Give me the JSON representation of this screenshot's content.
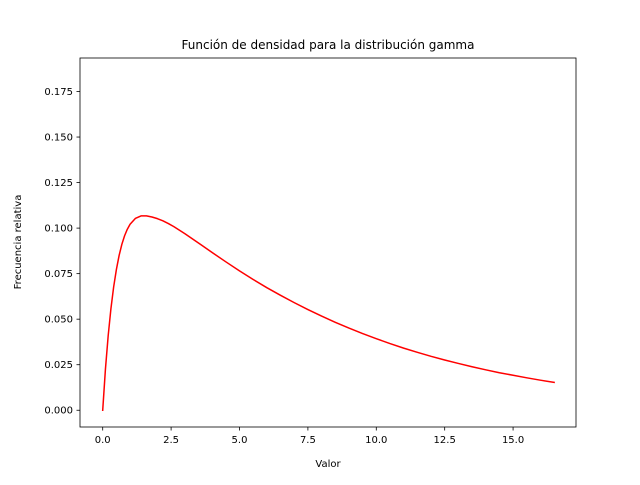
{
  "chart_data": {
    "type": "line",
    "title": "Función de densidad para la distribución gamma",
    "xlabel": "Valor",
    "ylabel": "Frecuencia relativa",
    "xlim": [
      -0.83,
      17.3
    ],
    "ylim": [
      -0.0092,
      0.1934
    ],
    "xticks": [
      0.0,
      2.5,
      5.0,
      7.5,
      10.0,
      12.5,
      15.0
    ],
    "xtick_labels": [
      "0.0",
      "2.5",
      "5.0",
      "7.5",
      "10.0",
      "12.5",
      "15.0"
    ],
    "yticks": [
      0.0,
      0.025,
      0.05,
      0.075,
      0.1,
      0.125,
      0.15,
      0.175
    ],
    "ytick_labels": [
      "0.000",
      "0.025",
      "0.050",
      "0.075",
      "0.100",
      "0.125",
      "0.150",
      "0.175"
    ],
    "grid": false,
    "series": [
      {
        "color": "#ff0000",
        "x": [
          0.0,
          0.1,
          0.2,
          0.3,
          0.4,
          0.5,
          0.6,
          0.7,
          0.8,
          0.9,
          1.0,
          1.2,
          1.4,
          1.6,
          1.8,
          2.0,
          2.2,
          2.4,
          2.6,
          2.8,
          3.0,
          3.3,
          3.6,
          4.0,
          4.5,
          5.0,
          5.5,
          6.0,
          6.5,
          7.0,
          7.5,
          8.0,
          8.5,
          9.0,
          9.5,
          10.0,
          10.5,
          11.0,
          11.5,
          12.0,
          12.5,
          13.0,
          13.5,
          14.0,
          14.5,
          15.0,
          15.5,
          16.0,
          16.5
        ],
        "y": [
          0.0,
          0.0226,
          0.0409,
          0.0557,
          0.0677,
          0.0773,
          0.085,
          0.0911,
          0.0958,
          0.0994,
          0.1021,
          0.1054,
          0.1067,
          0.1067,
          0.1061,
          0.1052,
          0.104,
          0.1025,
          0.1008,
          0.0989,
          0.097,
          0.0939,
          0.0908,
          0.0866,
          0.0815,
          0.0765,
          0.0718,
          0.0673,
          0.0631,
          0.0591,
          0.0553,
          0.0517,
          0.0483,
          0.0451,
          0.0421,
          0.0393,
          0.0366,
          0.0341,
          0.0318,
          0.0296,
          0.0276,
          0.0257,
          0.0239,
          0.0222,
          0.0206,
          0.0192,
          0.0178,
          0.0165,
          0.0153
        ]
      }
    ]
  }
}
